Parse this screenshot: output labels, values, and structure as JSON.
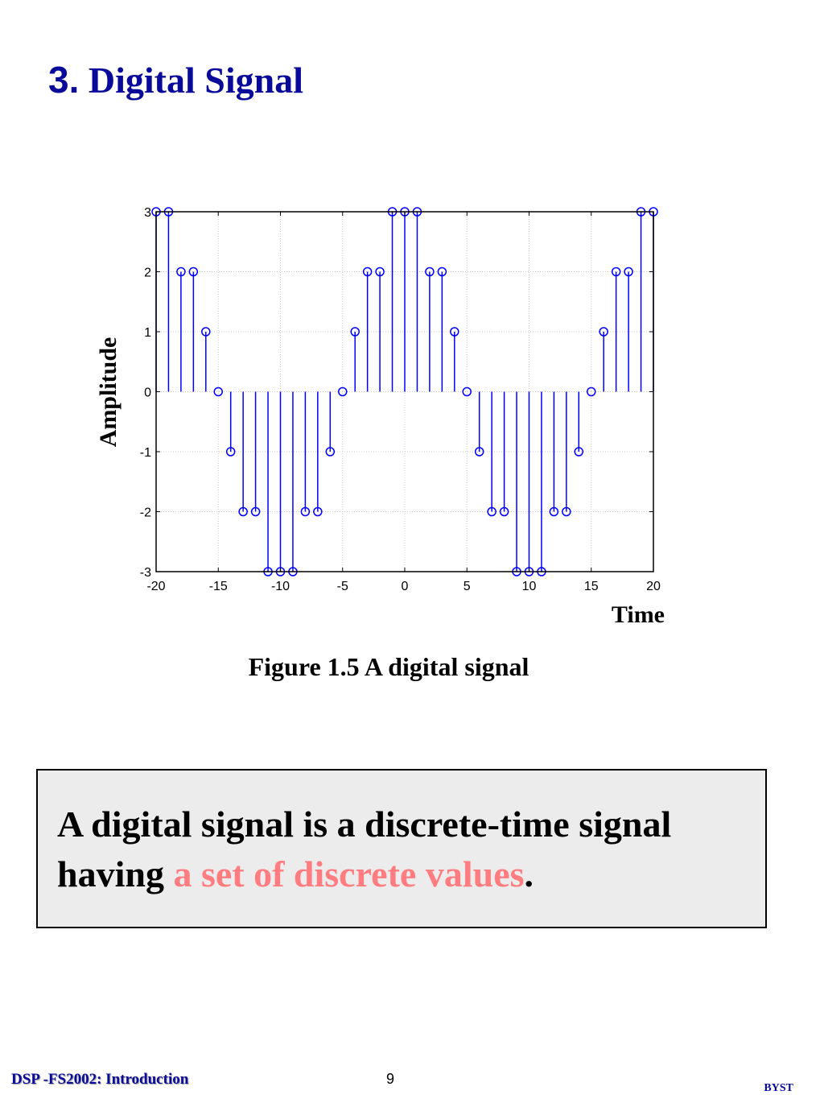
{
  "slide": {
    "title_number": "3.",
    "title_text": "Digital Signal",
    "caption": "Figure 1.5 A digital signal",
    "definition": {
      "part1": "A digital signal is a discrete-time signal having ",
      "highlight": "a set of discrete values",
      "part2": "."
    },
    "footer_left": "DSP -FS2002: Introduction",
    "page_number": "9",
    "footer_right": "BYST"
  },
  "colors": {
    "title": "#0a0a9a",
    "stem": "#0000ff",
    "highlight": "#ff7c80",
    "box_bg": "#ececec"
  },
  "chart_data": {
    "type": "stem",
    "xlabel": "Time",
    "ylabel": "Amplitude",
    "xlim": [
      -20,
      20
    ],
    "ylim": [
      -3,
      3
    ],
    "xticks": [
      -20,
      -15,
      -10,
      -5,
      0,
      5,
      10,
      15,
      20
    ],
    "yticks": [
      -3,
      -2,
      -1,
      0,
      1,
      2,
      3
    ],
    "xtick_labels": [
      "-20",
      "-15",
      "-10",
      "-5",
      "0",
      "5",
      "10",
      "15",
      "20"
    ],
    "ytick_labels": [
      "-3",
      "-2",
      "-1",
      "0",
      "1",
      "2",
      "3"
    ],
    "grid": true,
    "marker": "open-circle",
    "x": [
      -20,
      -19,
      -18,
      -17,
      -16,
      -15,
      -14,
      -13,
      -12,
      -11,
      -10,
      -9,
      -8,
      -7,
      -6,
      -5,
      -4,
      -3,
      -2,
      -1,
      0,
      1,
      2,
      3,
      4,
      5,
      6,
      7,
      8,
      9,
      10,
      11,
      12,
      13,
      14,
      15,
      16,
      17,
      18,
      19,
      20
    ],
    "y": [
      3,
      3,
      2,
      2,
      1,
      0,
      -1,
      -2,
      -2,
      -3,
      -3,
      -3,
      -2,
      -2,
      -1,
      0,
      1,
      2,
      2,
      3,
      3,
      3,
      2,
      2,
      1,
      0,
      -1,
      -2,
      -2,
      -3,
      -3,
      -3,
      -2,
      -2,
      -1,
      0,
      1,
      2,
      2,
      3,
      3
    ]
  }
}
